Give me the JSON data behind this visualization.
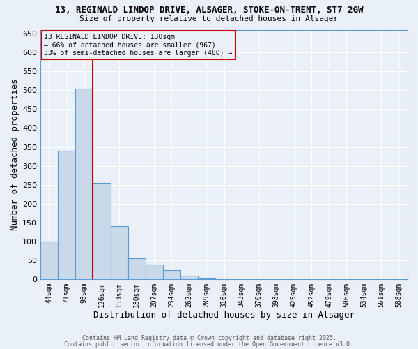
{
  "title1": "13, REGINALD LINDOP DRIVE, ALSAGER, STOKE-ON-TRENT, ST7 2GW",
  "title2": "Size of property relative to detached houses in Alsager",
  "xlabel": "Distribution of detached houses by size in Alsager",
  "ylabel": "Number of detached properties",
  "bin_labels": [
    "44sqm",
    "71sqm",
    "98sqm",
    "126sqm",
    "153sqm",
    "180sqm",
    "207sqm",
    "234sqm",
    "262sqm",
    "289sqm",
    "316sqm",
    "343sqm",
    "370sqm",
    "398sqm",
    "425sqm",
    "452sqm",
    "479sqm",
    "506sqm",
    "534sqm",
    "561sqm",
    "588sqm"
  ],
  "bar_values": [
    100,
    340,
    505,
    255,
    140,
    55,
    40,
    25,
    10,
    5,
    2,
    1,
    0,
    0,
    0,
    0,
    0,
    0,
    0,
    0,
    0
  ],
  "bar_color": "#c9d9ea",
  "bar_edge_color": "#5b9bd5",
  "red_line_x": 2.5,
  "red_line_color": "#cc0000",
  "annotation_text": "13 REGINALD LINDOP DRIVE: 130sqm\n← 66% of detached houses are smaller (967)\n33% of semi-detached houses are larger (480) →",
  "annotation_box_color": "#cc0000",
  "ylim": [
    0,
    660
  ],
  "yticks": [
    0,
    50,
    100,
    150,
    200,
    250,
    300,
    350,
    400,
    450,
    500,
    550,
    600,
    650
  ],
  "bg_color": "#eaf0f8",
  "grid_color": "#ffffff",
  "footer1": "Contains HM Land Registry data © Crown copyright and database right 2025.",
  "footer2": "Contains public sector information licensed under the Open Government Licence v3.0."
}
